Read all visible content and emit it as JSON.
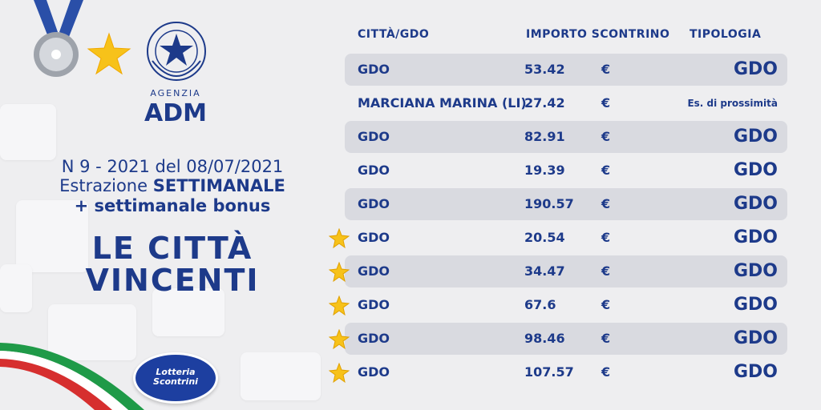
{
  "header": {
    "agenzia": "AGENZIA",
    "adm": "ADM"
  },
  "extraction": {
    "line1": "N 9 - 2021 del 08/07/2021",
    "line2_prefix": "Estrazione ",
    "line2_bold": "SETTIMANALE",
    "line3": "+ settimanale bonus"
  },
  "title": {
    "line1": "LE CITTÀ",
    "line2": "VINCENTI"
  },
  "logo": {
    "line1": "Lotteria",
    "line2": "Scontrini"
  },
  "table": {
    "headers": {
      "city": "CITTÀ/GDO",
      "amount": "IMPORTO SCONTRINO",
      "type": "TIPOLOGIA"
    },
    "rows": [
      {
        "city": "GDO",
        "amount": "53.42",
        "currency": "€",
        "type": "GDO",
        "shaded": true,
        "star": false
      },
      {
        "city": "MARCIANA MARINA (LI)",
        "amount": "27.42",
        "currency": "€",
        "type": "Es. di prossimità",
        "shaded": false,
        "star": false
      },
      {
        "city": "GDO",
        "amount": "82.91",
        "currency": "€",
        "type": "GDO",
        "shaded": true,
        "star": false
      },
      {
        "city": "GDO",
        "amount": "19.39",
        "currency": "€",
        "type": "GDO",
        "shaded": false,
        "star": false
      },
      {
        "city": "GDO",
        "amount": "190.57",
        "currency": "€",
        "type": "GDO",
        "shaded": true,
        "star": false
      },
      {
        "city": "GDO",
        "amount": "20.54",
        "currency": "€",
        "type": "GDO",
        "shaded": false,
        "star": true
      },
      {
        "city": "GDO",
        "amount": "34.47",
        "currency": "€",
        "type": "GDO",
        "shaded": true,
        "star": true
      },
      {
        "city": "GDO",
        "amount": "67.6",
        "currency": "€",
        "type": "GDO",
        "shaded": false,
        "star": true
      },
      {
        "city": "GDO",
        "amount": "98.46",
        "currency": "€",
        "type": "GDO",
        "shaded": true,
        "star": true
      },
      {
        "city": "GDO",
        "amount": "107.57",
        "currency": "€",
        "type": "GDO",
        "shaded": false,
        "star": true
      }
    ]
  },
  "colors": {
    "primary": "#1d3a8a",
    "row_shade": "#d9dae0",
    "star": "#f7c21a",
    "background": "#eeeef0"
  }
}
